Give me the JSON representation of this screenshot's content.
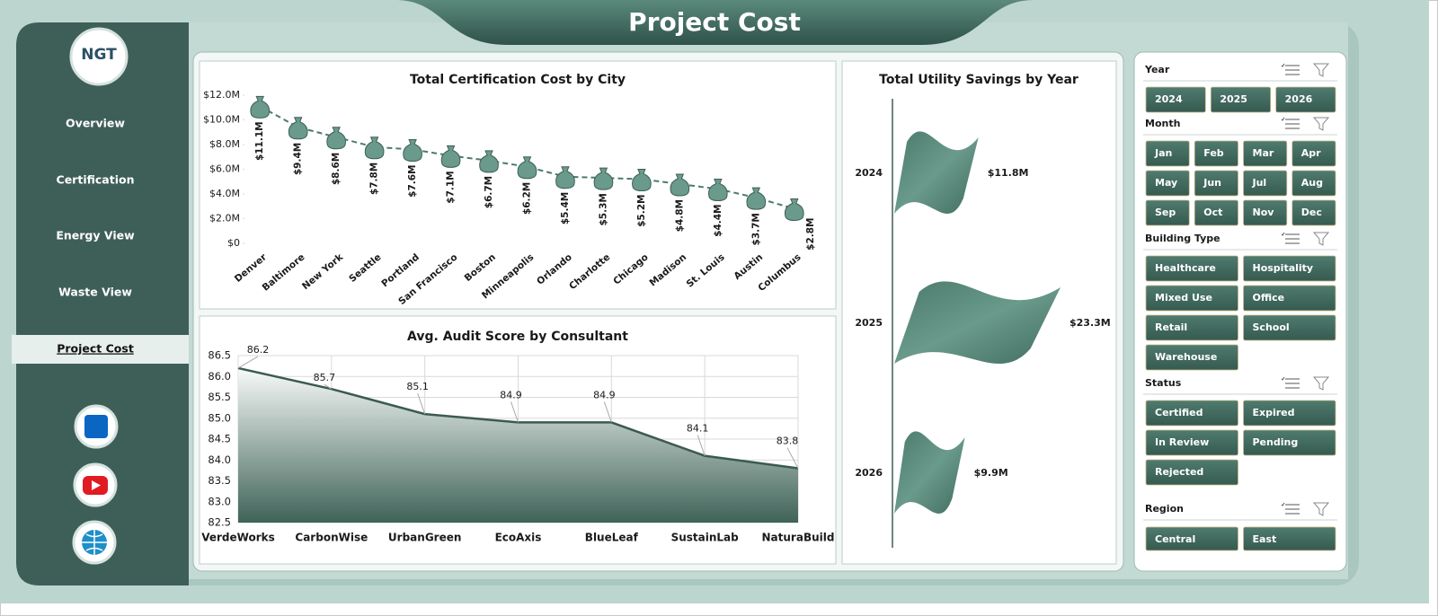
{
  "header": {
    "title": "Project Cost"
  },
  "logo": {
    "text": "NGT"
  },
  "nav": [
    "Overview",
    "Certification",
    "Energy View",
    "Waste View",
    "Project Cost"
  ],
  "chart_data": [
    {
      "type": "line",
      "title": "Total Certification Cost by City",
      "categories": [
        "Denver",
        "Baltimore",
        "New York",
        "Seattle",
        "Portland",
        "San Francisco",
        "Boston",
        "Minneapolis",
        "Orlando",
        "Charlotte",
        "Chicago",
        "Madison",
        "St. Louis",
        "Austin",
        "Columbus"
      ],
      "values": [
        11.1,
        9.4,
        8.6,
        7.8,
        7.6,
        7.1,
        6.7,
        6.2,
        5.4,
        5.3,
        5.2,
        4.8,
        4.4,
        3.7,
        2.8
      ],
      "value_labels": [
        "$11.1M",
        "$9.4M",
        "$8.6M",
        "$7.8M",
        "$7.6M",
        "$7.1M",
        "$6.7M",
        "$6.2M",
        "$5.4M",
        "$5.3M",
        "$5.2M",
        "$4.8M",
        "$4.4M",
        "$3.7M",
        "$2.8M"
      ],
      "color": "#4e7a6e",
      "ylim": [
        0,
        12
      ],
      "yticks": [
        {
          "value": 0,
          "label": "$0"
        },
        {
          "value": 2,
          "label": "$2.0M"
        },
        {
          "value": 4,
          "label": "$4.0M"
        },
        {
          "value": 6,
          "label": "$6.0M"
        },
        {
          "value": 8,
          "label": "$8.0M"
        },
        {
          "value": 10,
          "label": "$10.0M"
        },
        {
          "value": 12,
          "label": "$12.0M"
        }
      ],
      "grid": false
    },
    {
      "type": "area",
      "title": "Avg. Audit Score by Consultant",
      "categories": [
        "VerdeWorks",
        "CarbonWise",
        "UrbanGreen",
        "EcoAxis",
        "BlueLeaf",
        "SustainLab",
        "NaturaBuild"
      ],
      "values": [
        86.2,
        85.7,
        85.1,
        84.9,
        84.9,
        84.1,
        83.8
      ],
      "color": "#3b5a52",
      "ylim": [
        82.5,
        86.5
      ],
      "yticks": [
        82.5,
        {
          "value": 83,
          "label": "83.0"
        },
        83.5,
        {
          "value": 84,
          "label": "84.0"
        },
        84.5,
        {
          "value": 85,
          "label": "85.0"
        },
        85.5,
        {
          "value": 86,
          "label": "86.0"
        },
        86.5
      ],
      "grid": true
    },
    {
      "type": "hbar",
      "title": "Total Utility Savings by Year",
      "categories": [
        "2024",
        "2025",
        "2026"
      ],
      "values": [
        11.8,
        23.3,
        9.9
      ],
      "value_labels": [
        "$11.8M",
        "$23.3M",
        "$9.9M"
      ],
      "color": "#5a8a7c"
    }
  ],
  "slicers": [
    {
      "title": "Year",
      "items": [
        "2024",
        "2025",
        "2026"
      ]
    },
    {
      "title": "Month",
      "items": [
        "Jan",
        "Feb",
        "Mar",
        "Apr",
        "May",
        "Jun",
        "Jul",
        "Aug",
        "Sep",
        "Oct",
        "Nov",
        "Dec"
      ]
    },
    {
      "title": "Building Type",
      "items": [
        "Healthcare",
        "Hospitality",
        "Mixed Use",
        "Office",
        "Retail",
        "School",
        "Warehouse"
      ]
    },
    {
      "title": "Status",
      "items": [
        "Certified",
        "Expired",
        "In Review",
        "Pending",
        "Rejected"
      ]
    },
    {
      "title": "Region",
      "items": [
        "Central",
        "East"
      ]
    }
  ]
}
